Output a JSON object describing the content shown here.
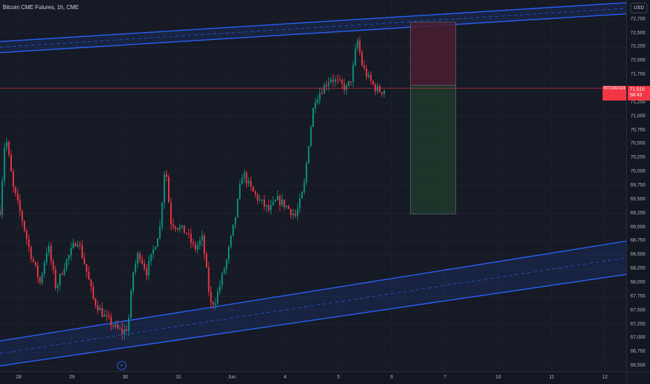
{
  "header": {
    "title": "Bitcoin CME Futures, 1h, CME"
  },
  "currency_button": {
    "label": "USD"
  },
  "price_scale": {
    "ticks": [
      {
        "label": "72,750",
        "value": 72750
      },
      {
        "label": "72,500",
        "value": 72500
      },
      {
        "label": "72,250",
        "value": 72250
      },
      {
        "label": "72,000",
        "value": 72000
      },
      {
        "label": "71,750",
        "value": 71750
      },
      {
        "label": "71,250",
        "value": 71250
      },
      {
        "label": "71,000",
        "value": 71000
      },
      {
        "label": "70,750",
        "value": 70750
      },
      {
        "label": "70,500",
        "value": 70500
      },
      {
        "label": "70,250",
        "value": 70250
      },
      {
        "label": "70,000",
        "value": 70000
      },
      {
        "label": "69,750",
        "value": 69750
      },
      {
        "label": "69,500",
        "value": 69500
      },
      {
        "label": "69,250",
        "value": 69250
      },
      {
        "label": "69,000",
        "value": 69000
      },
      {
        "label": "68,750",
        "value": 68750
      },
      {
        "label": "68,500",
        "value": 68500
      },
      {
        "label": "68,250",
        "value": 68250
      },
      {
        "label": "68,000",
        "value": 68000
      },
      {
        "label": "67,750",
        "value": 67750
      },
      {
        "label": "67,500",
        "value": 67500
      },
      {
        "label": "67,250",
        "value": 67250
      },
      {
        "label": "67,000",
        "value": 67000
      },
      {
        "label": "66,750",
        "value": 66750
      },
      {
        "label": "66,500",
        "value": 66500
      }
    ]
  },
  "time_scale": {
    "ticks": [
      {
        "label": "28",
        "day": 0
      },
      {
        "label": "29",
        "day": 1
      },
      {
        "label": "30",
        "day": 2
      },
      {
        "label": "31",
        "day": 3
      },
      {
        "label": "Jun",
        "day": 4
      },
      {
        "label": "4",
        "day": 5
      },
      {
        "label": "5",
        "day": 6
      },
      {
        "label": "6",
        "day": 7
      },
      {
        "label": "7",
        "day": 8
      },
      {
        "label": "10",
        "day": 9
      },
      {
        "label": "11",
        "day": 10
      },
      {
        "label": "12",
        "day": 11
      }
    ]
  },
  "last_price": {
    "symbol": "BTCM2024",
    "price": "71,510",
    "countdown": "58:43",
    "value": 71510
  },
  "colors": {
    "up": "#089981",
    "down": "#f23645",
    "channel": "#2962ff",
    "profit_zone": "#1e3a2c",
    "loss_zone": "#4a1f33",
    "price_line": "#f23645"
  },
  "icons": {
    "arrow_badge": "double-chevron-right-icon"
  },
  "channels": {
    "upper": {
      "lower_line": [
        [
          0,
          72150
        ],
        [
          898,
          72850
        ]
      ],
      "upper_line": [
        [
          0,
          72350
        ],
        [
          898,
          73050
        ]
      ]
    },
    "lower": {
      "lower_line": [
        [
          0,
          66500
        ],
        [
          898,
          68150
        ]
      ],
      "upper_line": [
        [
          0,
          66950
        ],
        [
          898,
          68750
        ]
      ]
    }
  },
  "position_tool": {
    "day_start": 7.35,
    "day_end": 8.2,
    "entry": 71560,
    "stop": 72700,
    "target": 69240
  },
  "chart_data": {
    "type": "candlestick",
    "title": "Bitcoin CME Futures, 1h, CME",
    "xlabel": "",
    "ylabel": "",
    "ylim": [
      66400,
      73100
    ],
    "x_day_range": [
      -0.35,
      11.4
    ],
    "anchors": [
      [
        -0.35,
        69300
      ],
      [
        -0.25,
        70700
      ],
      [
        -0.1,
        69700
      ],
      [
        0.05,
        69200
      ],
      [
        0.2,
        68600
      ],
      [
        0.4,
        68000
      ],
      [
        0.55,
        68700
      ],
      [
        0.7,
        67900
      ],
      [
        0.85,
        68300
      ],
      [
        1.0,
        68600
      ],
      [
        1.1,
        68800
      ],
      [
        1.25,
        68300
      ],
      [
        1.4,
        67700
      ],
      [
        1.6,
        67400
      ],
      [
        1.8,
        67200
      ],
      [
        1.95,
        67100
      ],
      [
        2.05,
        67200
      ],
      [
        2.15,
        68200
      ],
      [
        2.25,
        68550
      ],
      [
        2.4,
        68200
      ],
      [
        2.5,
        68500
      ],
      [
        2.65,
        69000
      ],
      [
        2.75,
        70200
      ],
      [
        2.85,
        69100
      ],
      [
        3.0,
        69000
      ],
      [
        3.15,
        68900
      ],
      [
        3.3,
        68600
      ],
      [
        3.45,
        68800
      ],
      [
        3.6,
        67600
      ],
      [
        3.7,
        67700
      ],
      [
        3.9,
        68400
      ],
      [
        4.05,
        69100
      ],
      [
        4.2,
        70000
      ],
      [
        4.35,
        69700
      ],
      [
        4.5,
        69500
      ],
      [
        4.7,
        69300
      ],
      [
        4.85,
        69500
      ],
      [
        5.0,
        69400
      ],
      [
        5.2,
        69200
      ],
      [
        5.35,
        69700
      ],
      [
        5.45,
        70600
      ],
      [
        5.55,
        71300
      ],
      [
        5.7,
        71500
      ],
      [
        5.85,
        71700
      ],
      [
        6.0,
        71600
      ],
      [
        6.15,
        71500
      ],
      [
        6.25,
        71700
      ],
      [
        6.35,
        72400
      ],
      [
        6.45,
        71900
      ],
      [
        6.55,
        71700
      ],
      [
        6.7,
        71500
      ],
      [
        6.8,
        71450
      ],
      [
        6.88,
        71510
      ]
    ]
  }
}
